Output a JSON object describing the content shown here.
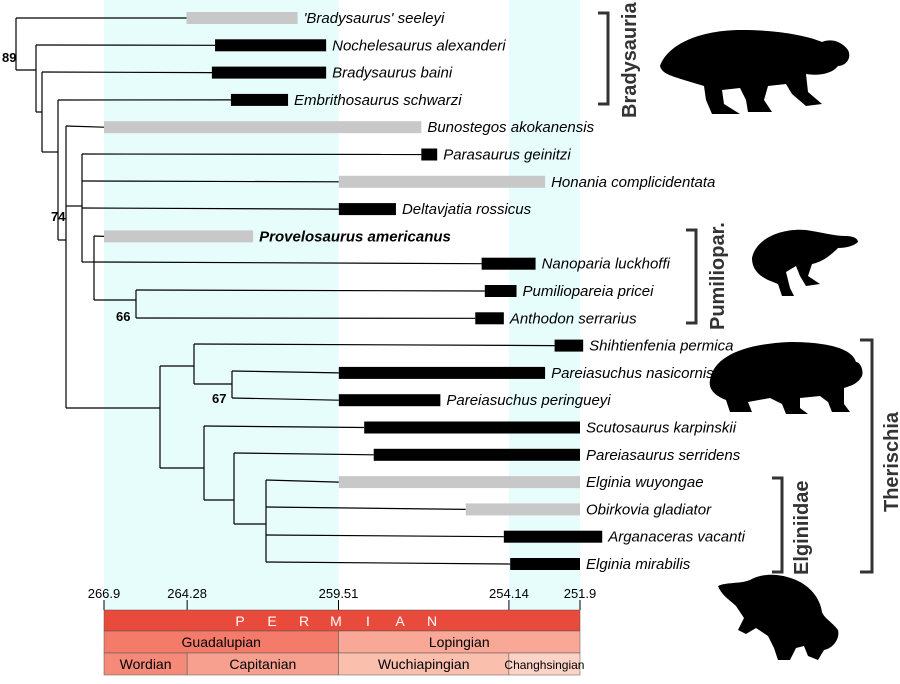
{
  "colors": {
    "band": "#e6fdfb",
    "bar_known": "#000000",
    "bar_ghost": "#c8c8c8",
    "tree": "#000000",
    "period": "#e84a3c",
    "epoch_guadalupian": "#f47a6a",
    "epoch_lopingian": "#f9a898",
    "stage_wordian": "#f58a78",
    "stage_capitanian": "#f7a090",
    "stage_wuchiapingian": "#fbbfae",
    "stage_changhsingian": "#fcd3c6",
    "bracket": "#333333"
  },
  "time_scale": {
    "period_letters": [
      "P",
      "E",
      "R",
      "M",
      "I",
      "A",
      "N"
    ],
    "epochs": [
      {
        "name": "Guadalupian",
        "start": 266.9,
        "end": 259.51,
        "color_key": "epoch_guadalupian"
      },
      {
        "name": "Lopingian",
        "start": 259.51,
        "end": 251.9,
        "color_key": "epoch_lopingian"
      }
    ],
    "stages": [
      {
        "name": "Wordian",
        "start": 266.9,
        "end": 264.28,
        "color_key": "stage_wordian",
        "small": false
      },
      {
        "name": "Capitanian",
        "start": 264.28,
        "end": 259.51,
        "color_key": "stage_capitanian",
        "small": false
      },
      {
        "name": "Wuchiapingian",
        "start": 259.51,
        "end": 254.14,
        "color_key": "stage_wuchiapingian",
        "small": false
      },
      {
        "name": "Changhsingian",
        "start": 254.14,
        "end": 251.9,
        "color_key": "stage_changhsingian",
        "small": true
      }
    ],
    "ticks": [
      "266.9",
      "264.28",
      "259.51",
      "254.14",
      "251.9"
    ],
    "tick_values": [
      266.9,
      264.28,
      259.51,
      254.14,
      251.9
    ],
    "bands": [
      [
        266.9,
        264.28
      ],
      [
        264.28,
        259.51
      ],
      [
        254.14,
        251.9
      ]
    ]
  },
  "taxa": [
    {
      "name": "'Bradysaurus' seeleyi",
      "bar": [
        264.3,
        260.8
      ],
      "ghost": true,
      "bold": false
    },
    {
      "name": "Nochelesaurus alexanderi",
      "bar": [
        263.4,
        259.9
      ],
      "ghost": false,
      "bold": false
    },
    {
      "name": "Bradysaurus baini",
      "bar": [
        263.5,
        259.9
      ],
      "ghost": false,
      "bold": false
    },
    {
      "name": "Embrithosaurus schwarzi",
      "bar": [
        262.9,
        261.1
      ],
      "ghost": false,
      "bold": false
    },
    {
      "name": "Bunostegos akokanensis",
      "bar": [
        266.9,
        256.9
      ],
      "ghost": true,
      "bold": false
    },
    {
      "name": "Parasaurus geinitzi",
      "bar": [
        256.9,
        256.4
      ],
      "ghost": false,
      "bold": false
    },
    {
      "name": "Honania complicidentata",
      "bar": [
        259.5,
        253.0
      ],
      "ghost": true,
      "bold": false
    },
    {
      "name": "Deltavjatia rossicus",
      "bar": [
        259.5,
        257.7
      ],
      "ghost": false,
      "bold": false
    },
    {
      "name": "Provelosaurus americanus",
      "bar": [
        266.9,
        262.2
      ],
      "ghost": true,
      "bold": true
    },
    {
      "name": "Nanoparia luckhoffi",
      "bar": [
        255.0,
        253.3
      ],
      "ghost": false,
      "bold": false
    },
    {
      "name": "Pumiliopareia pricei",
      "bar": [
        254.9,
        253.9
      ],
      "ghost": false,
      "bold": false
    },
    {
      "name": "Anthodon serrarius",
      "bar": [
        255.2,
        254.3
      ],
      "ghost": false,
      "bold": false
    },
    {
      "name": "Shihtienfenia permica",
      "bar": [
        252.7,
        251.8
      ],
      "ghost": false,
      "bold": false
    },
    {
      "name": "Pareiasuchus nasicornis",
      "bar": [
        259.5,
        253.0
      ],
      "ghost": false,
      "bold": false
    },
    {
      "name": "Pareiasuchus peringueyi",
      "bar": [
        259.5,
        256.3
      ],
      "ghost": false,
      "bold": false
    },
    {
      "name": "Scutosaurus karpinskii",
      "bar": [
        258.7,
        251.9
      ],
      "ghost": false,
      "bold": false
    },
    {
      "name": "Pareiasaurus serridens",
      "bar": [
        258.4,
        251.9
      ],
      "ghost": false,
      "bold": false
    },
    {
      "name": "Elginia wuyongae",
      "bar": [
        259.5,
        251.9
      ],
      "ghost": true,
      "bold": false
    },
    {
      "name": "Obirkovia gladiator",
      "bar": [
        255.5,
        251.9
      ],
      "ghost": true,
      "bold": false
    },
    {
      "name": "Arganaceras vacanti",
      "bar": [
        254.3,
        251.2
      ],
      "ghost": false,
      "bold": false
    },
    {
      "name": "Elginia mirabilis",
      "bar": [
        254.1,
        251.9
      ],
      "ghost": false,
      "bold": false
    }
  ],
  "support_values": [
    "89",
    "74",
    "66",
    "67"
  ],
  "clades": [
    "Bradysauria",
    "Pumiliopar.",
    "Therischia",
    "Elginiidae"
  ],
  "silhouettes": [
    "bradysaur-silhouette",
    "pumiliopareia-silhouette",
    "scutosaurus-silhouette",
    "elginia-silhouette"
  ]
}
